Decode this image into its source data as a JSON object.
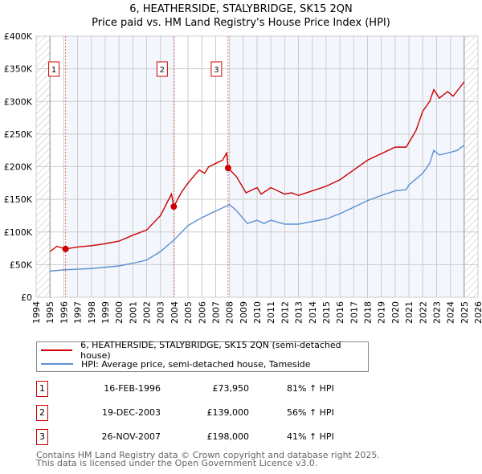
{
  "title": "6, HEATHERSIDE, STALYBRIDGE, SK15 2QN",
  "subtitle": "Price paid vs. HM Land Registry's House Price Index (HPI)",
  "chart_data": {
    "type": "line",
    "xlim": [
      1994,
      2026
    ],
    "ylim": [
      0,
      400000
    ],
    "x_ticks": [
      "1994",
      "1995",
      "1996",
      "1997",
      "1998",
      "1999",
      "2000",
      "2001",
      "2002",
      "2003",
      "2004",
      "2005",
      "2006",
      "2007",
      "2008",
      "2009",
      "2010",
      "2011",
      "2012",
      "2013",
      "2014",
      "2015",
      "2016",
      "2017",
      "2018",
      "2019",
      "2020",
      "2021",
      "2022",
      "2023",
      "2024",
      "2025",
      "2026"
    ],
    "y_ticks": [
      {
        "v": 0,
        "label": "£0"
      },
      {
        "v": 50000,
        "label": "£50K"
      },
      {
        "v": 100000,
        "label": "£100K"
      },
      {
        "v": 150000,
        "label": "£150K"
      },
      {
        "v": 200000,
        "label": "£200K"
      },
      {
        "v": 250000,
        "label": "£250K"
      },
      {
        "v": 300000,
        "label": "£300K"
      },
      {
        "v": 350000,
        "label": "£350K"
      },
      {
        "v": 400000,
        "label": "£400K"
      }
    ],
    "data_range": [
      1995,
      2025
    ],
    "series": [
      {
        "name": "6, HEATHERSIDE, STALYBRIDGE, SK15 2QN (semi-detached house)",
        "color": "#cc0000",
        "x": [
          1995,
          1995.5,
          1996.13,
          1997,
          1998,
          1999,
          2000,
          2001,
          2002,
          2003,
          2003.8,
          2003.97,
          2004.5,
          2005,
          2005.8,
          2006.2,
          2006.5,
          2007,
          2007.5,
          2007.8,
          2007.9,
          2008.5,
          2009.2,
          2010,
          2010.3,
          2011,
          2012,
          2012.5,
          2013,
          2014,
          2015,
          2016,
          2017,
          2018,
          2019,
          2020,
          2020.8,
          2021.5,
          2022,
          2022.5,
          2022.8,
          2023.2,
          2023.8,
          2024.2,
          2025
        ],
        "y": [
          70000,
          78000,
          73950,
          77000,
          79000,
          82000,
          86000,
          95000,
          103000,
          125000,
          158000,
          139000,
          160000,
          175000,
          195000,
          190000,
          200000,
          205000,
          210000,
          221000,
          198000,
          185000,
          160000,
          168000,
          158000,
          168000,
          158000,
          160000,
          156000,
          163000,
          170000,
          180000,
          195000,
          210000,
          220000,
          230000,
          230000,
          255000,
          285000,
          300000,
          318000,
          305000,
          315000,
          308000,
          330000
        ]
      },
      {
        "name": "HPI: Average price, semi-detached house, Tameside",
        "color": "#5b8fd4",
        "x": [
          1995,
          1996,
          1997,
          1998,
          1999,
          2000,
          2001,
          2002,
          2003,
          2004,
          2005,
          2006,
          2007,
          2008,
          2008.5,
          2009.3,
          2010,
          2010.5,
          2011,
          2012,
          2013,
          2014,
          2015,
          2016,
          2017,
          2018,
          2019,
          2020,
          2020.8,
          2021,
          2022,
          2022.5,
          2022.8,
          2023.2,
          2024,
          2024.5,
          2025
        ],
        "y": [
          40000,
          42000,
          43000,
          44000,
          46000,
          48000,
          52000,
          57000,
          70000,
          88000,
          110000,
          122000,
          132000,
          142000,
          133000,
          113000,
          118000,
          113000,
          118000,
          112000,
          112000,
          116000,
          120000,
          128000,
          138000,
          148000,
          156000,
          163000,
          165000,
          172000,
          190000,
          205000,
          225000,
          218000,
          222000,
          225000,
          233000
        ]
      }
    ],
    "sales": [
      {
        "id": "1",
        "x": 1996.13,
        "y": 73950,
        "date": "16-FEB-1996",
        "price": "£73,950",
        "hpi": "81% ↑ HPI"
      },
      {
        "id": "2",
        "x": 2003.97,
        "y": 139000,
        "date": "19-DEC-2003",
        "price": "£139,000",
        "hpi": "56% ↑ HPI"
      },
      {
        "id": "3",
        "x": 2007.9,
        "y": 198000,
        "date": "26-NOV-2007",
        "price": "£198,000",
        "hpi": "41% ↑ HPI"
      }
    ]
  },
  "footer": [
    "Contains HM Land Registry data © Crown copyright and database right 2025.",
    "This data is licensed under the Open Government Licence v3.0."
  ]
}
